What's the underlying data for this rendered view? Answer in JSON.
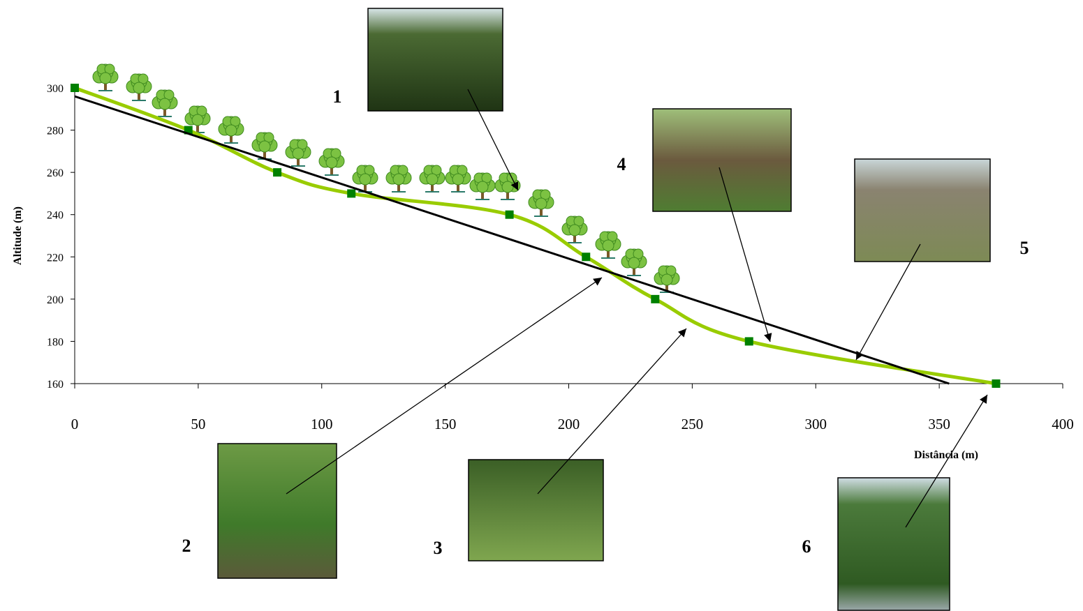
{
  "chart_data": {
    "type": "line",
    "x_label": "Distância (m)",
    "y_label": "Altitude (m)",
    "xlim": [
      0,
      400
    ],
    "ylim": [
      160,
      300
    ],
    "xticks": [
      0,
      50,
      100,
      150,
      200,
      250,
      300,
      350,
      400
    ],
    "yticks": [
      160,
      180,
      200,
      220,
      240,
      260,
      280,
      300
    ],
    "series": [
      {
        "color": "#99cc00",
        "marker_color": "#008000",
        "smooth": true,
        "x": [
          0,
          46,
          82,
          112,
          176,
          207,
          235,
          273,
          373
        ],
        "values": [
          300,
          280,
          260,
          250,
          240,
          220,
          200,
          180,
          160
        ]
      },
      {
        "color": "#000000",
        "smooth": false,
        "x": [
          0,
          354
        ],
        "values": [
          296,
          160
        ]
      }
    ],
    "photo_labels": [
      "1",
      "2",
      "3",
      "4",
      "5",
      "6"
    ]
  }
}
